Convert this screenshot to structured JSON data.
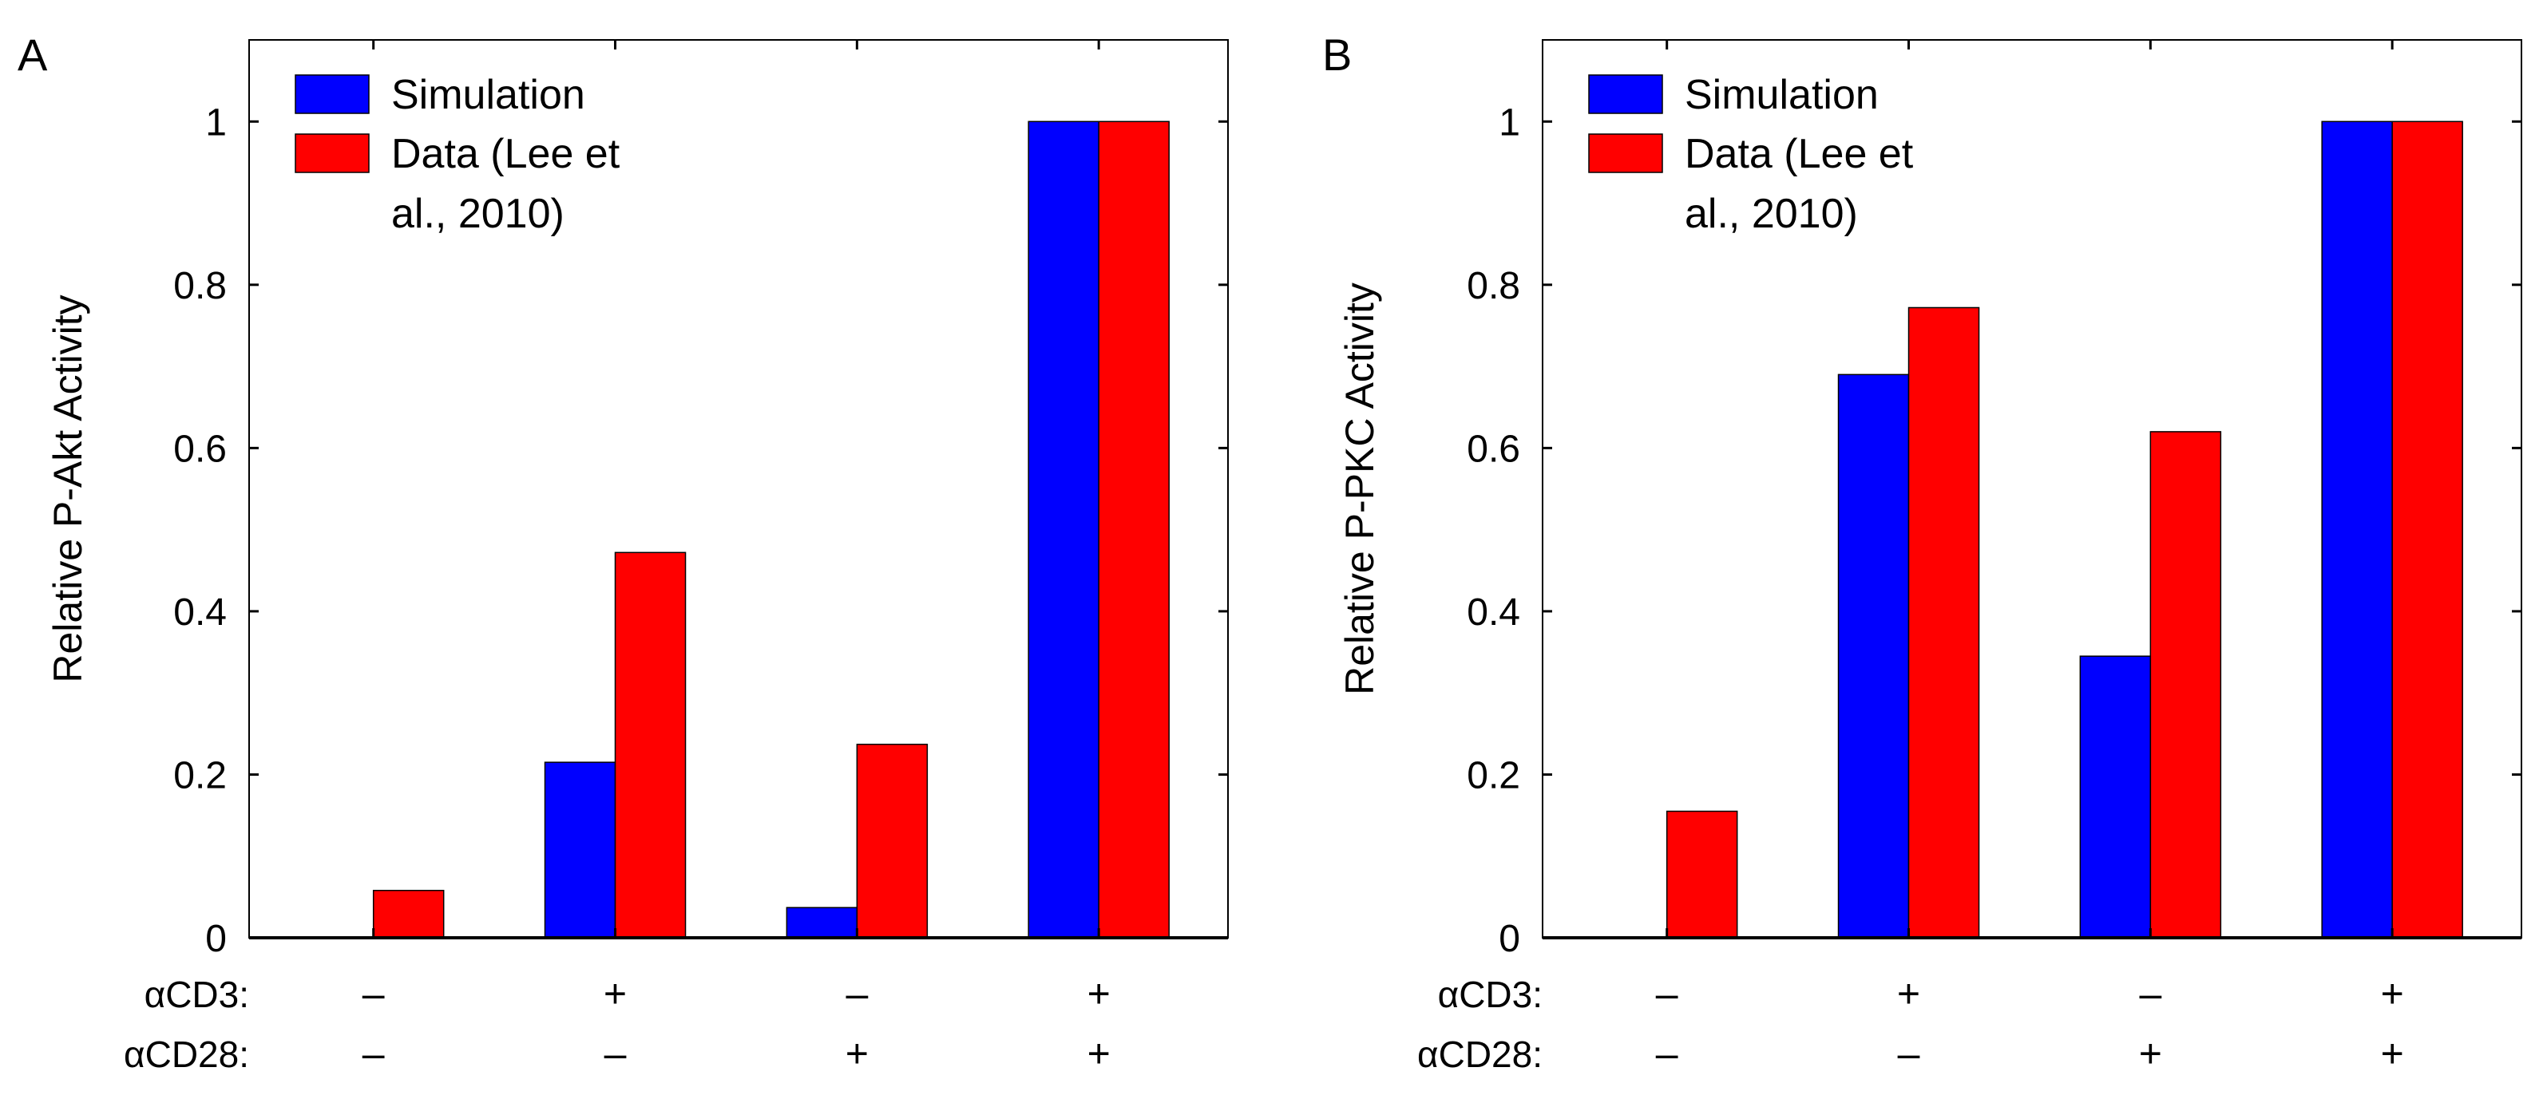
{
  "figure": {
    "condition_labels": [
      "αCD3:",
      "αCD28:"
    ],
    "colors": {
      "simulation": "#0000FF",
      "data": "#FF0000",
      "axis": "#000000"
    }
  },
  "chart_data": [
    {
      "type": "bar",
      "panel_letter": "A",
      "title": "",
      "ylabel": "Relative P-Akt Activity",
      "xlabel": "",
      "ylim": [
        0,
        1.1
      ],
      "yticks": [
        0,
        0.2,
        0.4,
        0.6,
        0.8,
        1
      ],
      "ytick_labels": [
        "0",
        "0.2",
        "0.4",
        "0.6",
        "0.8",
        "1"
      ],
      "grid": false,
      "legend_position": "top-left",
      "categories": [
        "αCD3 − / αCD28 −",
        "αCD3 + / αCD28 −",
        "αCD3 − / αCD28 +",
        "αCD3 + / αCD28 +"
      ],
      "condition_rows": [
        {
          "label": "αCD3:",
          "values": [
            "–",
            "+",
            "–",
            "+"
          ]
        },
        {
          "label": "αCD28:",
          "values": [
            "–",
            "–",
            "+",
            "+"
          ]
        }
      ],
      "series": [
        {
          "name": "Simulation",
          "legend_lines": [
            "Simulation"
          ],
          "color": "#0000FF",
          "values": [
            0.0,
            0.215,
            0.037,
            1.0
          ]
        },
        {
          "name": "Data (Lee et al., 2010)",
          "legend_lines": [
            "Data (Lee et",
            "al., 2010)"
          ],
          "color": "#FF0000",
          "values": [
            0.058,
            0.472,
            0.237,
            1.0
          ]
        }
      ]
    },
    {
      "type": "bar",
      "panel_letter": "B",
      "title": "",
      "ylabel": "Relative P-PKC Activity",
      "xlabel": "",
      "ylim": [
        0,
        1.1
      ],
      "yticks": [
        0,
        0.2,
        0.4,
        0.6,
        0.8,
        1
      ],
      "ytick_labels": [
        "0",
        "0.2",
        "0.4",
        "0.6",
        "0.8",
        "1"
      ],
      "grid": false,
      "legend_position": "top-left",
      "categories": [
        "αCD3 − / αCD28 −",
        "αCD3 + / αCD28 −",
        "αCD3 − / αCD28 +",
        "αCD3 + / αCD28 +"
      ],
      "condition_rows": [
        {
          "label": "αCD3:",
          "values": [
            "–",
            "+",
            "–",
            "+"
          ]
        },
        {
          "label": "αCD28:",
          "values": [
            "–",
            "–",
            "+",
            "+"
          ]
        }
      ],
      "series": [
        {
          "name": "Simulation",
          "legend_lines": [
            "Simulation"
          ],
          "color": "#0000FF",
          "values": [
            0.0,
            0.69,
            0.345,
            1.0
          ]
        },
        {
          "name": "Data (Lee et al., 2010)",
          "legend_lines": [
            "Data (Lee et",
            "al., 2010)"
          ],
          "color": "#FF0000",
          "values": [
            0.155,
            0.772,
            0.62,
            1.0
          ]
        }
      ]
    }
  ]
}
